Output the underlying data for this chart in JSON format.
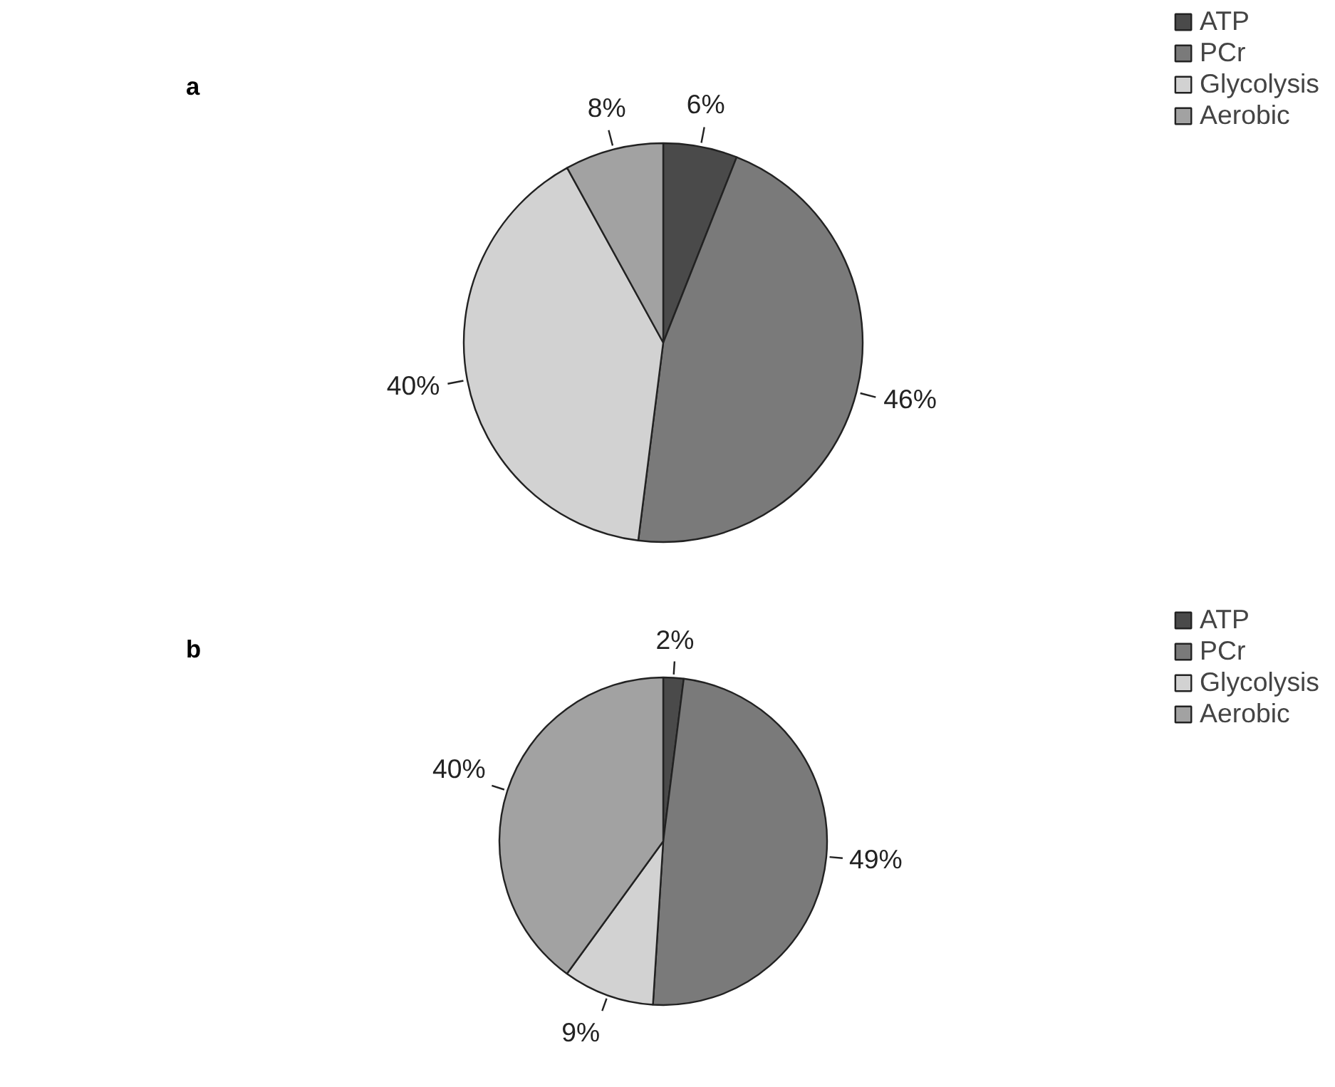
{
  "chart_data": [
    {
      "type": "pie",
      "title": "a",
      "categories": [
        "ATP",
        "PCr",
        "Glycolysis",
        "Aerobic"
      ],
      "values": [
        6,
        46,
        40,
        8
      ],
      "colors": [
        "#4a4a4a",
        "#7a7a7a",
        "#d2d2d2",
        "#a2a2a2"
      ],
      "value_labels": [
        "6%",
        "46%",
        "40%",
        "8%"
      ],
      "legend": "top right"
    },
    {
      "type": "pie",
      "title": "b",
      "categories": [
        "ATP",
        "PCr",
        "Glycolysis",
        "Aerobic"
      ],
      "values": [
        2,
        49,
        9,
        40
      ],
      "colors": [
        "#4a4a4a",
        "#7a7a7a",
        "#d2d2d2",
        "#a2a2a2"
      ],
      "value_labels": [
        "2%",
        "49%",
        "9%",
        "40%"
      ],
      "legend": "top right"
    }
  ]
}
